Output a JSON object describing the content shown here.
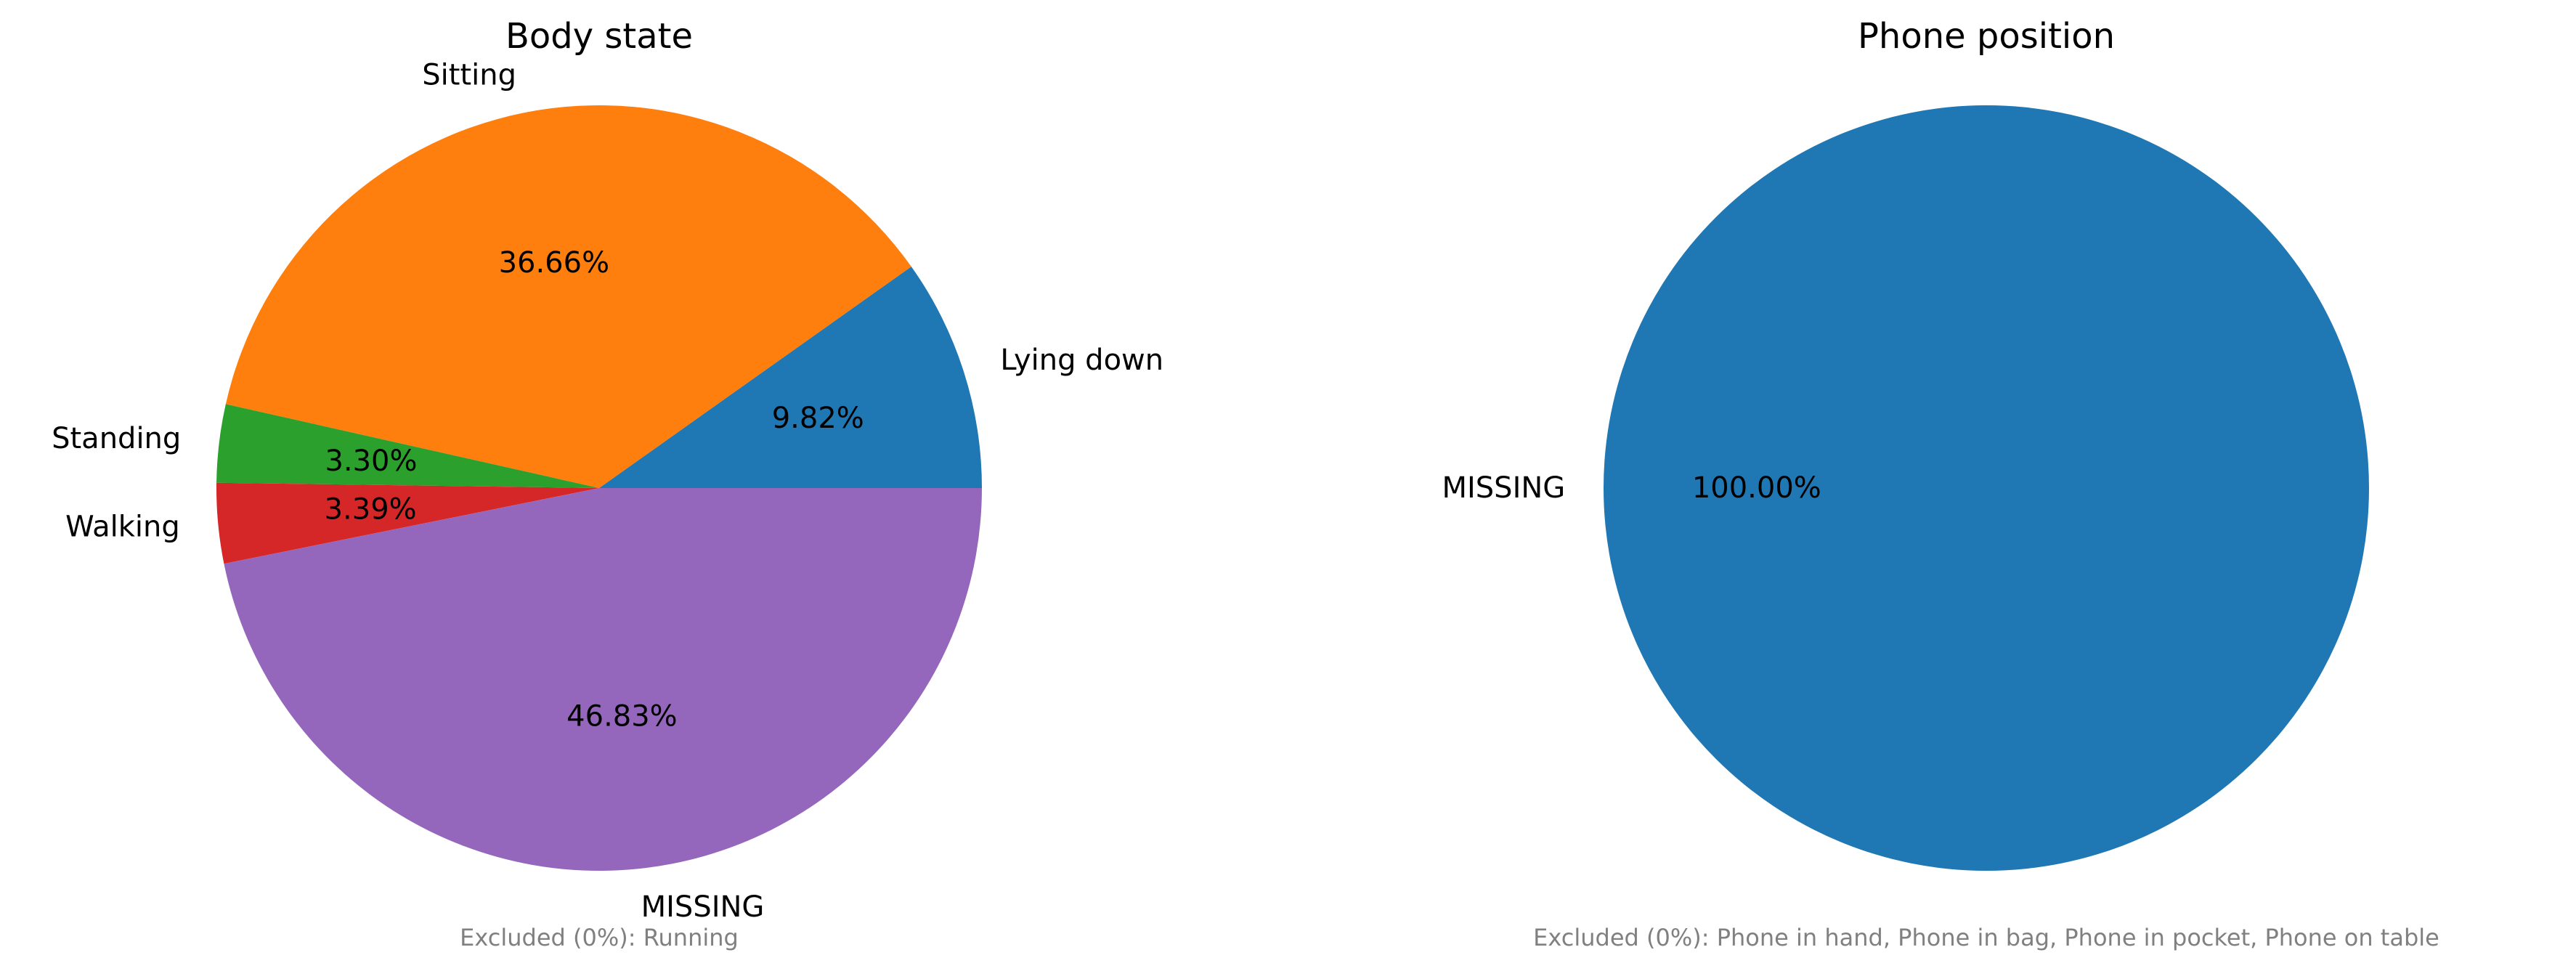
{
  "chart_data": [
    {
      "type": "pie",
      "title": "Body state",
      "categories": [
        "Lying down",
        "Sitting",
        "Standing",
        "Walking",
        "MISSING"
      ],
      "values": [
        9.82,
        36.66,
        3.3,
        3.39,
        46.83
      ],
      "value_labels": [
        "9.82%",
        "36.66%",
        "3.30%",
        "3.39%",
        "46.83%"
      ],
      "colors": [
        "#1f77b4",
        "#ff7f0e",
        "#2ca02c",
        "#d62728",
        "#9467bd"
      ],
      "start_angle": 0,
      "direction": "counterclockwise",
      "note": "Excluded (0%): Running"
    },
    {
      "type": "pie",
      "title": "Phone position",
      "categories": [
        "MISSING"
      ],
      "values": [
        100.0
      ],
      "value_labels": [
        "100.00%"
      ],
      "colors": [
        "#1f77b4"
      ],
      "start_angle": 0,
      "direction": "counterclockwise",
      "note": "Excluded (0%): Phone in hand, Phone in bag, Phone in pocket, Phone on table"
    }
  ]
}
